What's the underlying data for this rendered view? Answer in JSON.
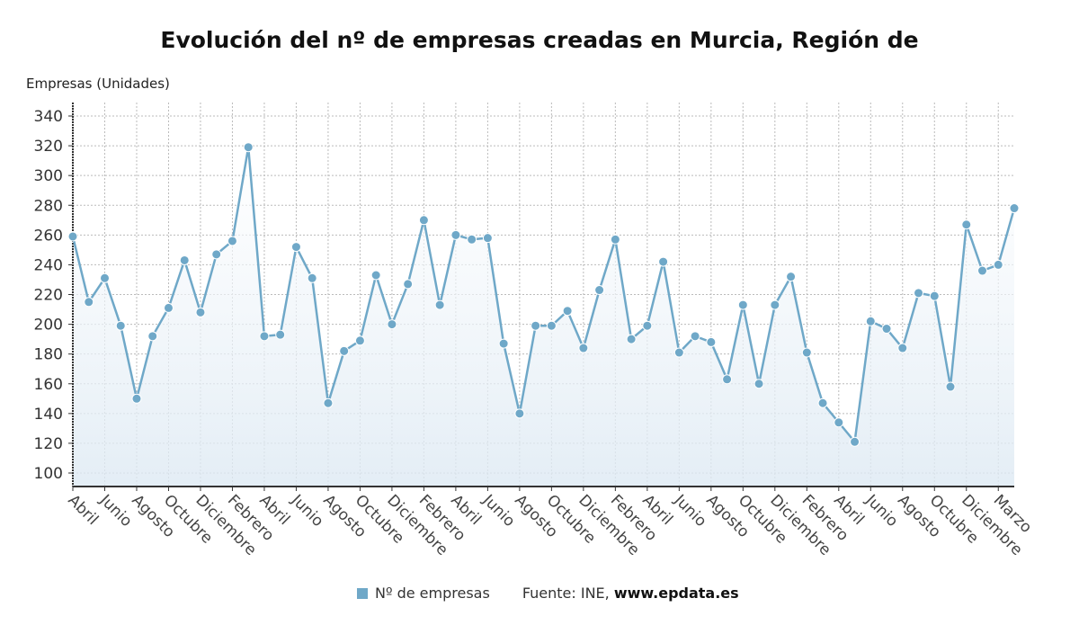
{
  "chart_data": {
    "type": "line",
    "title": "Evolución del nº de empresas creadas en Murcia, Región de",
    "ylabel": "Empresas (Unidades)",
    "xlabel": "",
    "ylim": [
      100,
      340
    ],
    "yticks": [
      100,
      120,
      140,
      160,
      180,
      200,
      220,
      240,
      260,
      280,
      300,
      320,
      340
    ],
    "grid": true,
    "legend_position": "bottom",
    "x_tick_labels": [
      "Abril",
      "Junio",
      "Agosto",
      "Octubre",
      "Diciembre",
      "Febrero",
      "Abril",
      "Junio",
      "Agosto",
      "Octubre",
      "Diciembre",
      "Febrero",
      "Abril",
      "Junio",
      "Agosto",
      "Octubre",
      "Diciembre",
      "Febrero",
      "Abril",
      "Junio",
      "Agosto",
      "Octubre",
      "Diciembre",
      "Febrero",
      "Abril",
      "Junio",
      "Agosto",
      "Octubre",
      "Diciembre",
      "Marzo"
    ],
    "series": [
      {
        "name": "Nº de empresas",
        "color": "#6fa8c8",
        "values": [
          259,
          215,
          231,
          199,
          150,
          192,
          211,
          243,
          208,
          247,
          256,
          319,
          192,
          193,
          252,
          231,
          147,
          182,
          189,
          233,
          200,
          227,
          270,
          213,
          260,
          257,
          258,
          187,
          140,
          199,
          199,
          209,
          184,
          223,
          257,
          190,
          199,
          242,
          181,
          192,
          188,
          163,
          213,
          160,
          213,
          232,
          181,
          147,
          134,
          121,
          202,
          197,
          184,
          221,
          219,
          158,
          267,
          236,
          240,
          278
        ]
      }
    ]
  },
  "legend": {
    "series_label": "Nº de empresas",
    "source_prefix": "Fuente: INE, ",
    "source_site": "www.epdata.es"
  }
}
